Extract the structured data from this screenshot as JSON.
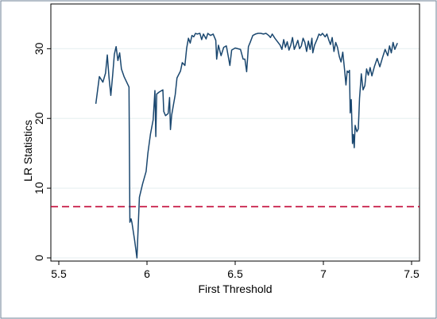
{
  "chart_data": {
    "type": "line",
    "title": "",
    "xlabel": "First Threshold",
    "ylabel": "LR Statistics",
    "xlim": [
      5.5,
      7.5
    ],
    "ylim": [
      0,
      33
    ],
    "x_ticks": [
      5.5,
      6,
      6.5,
      7,
      7.5
    ],
    "x_tick_labels": [
      "5.5",
      "6",
      "6.5",
      "7",
      "7.5"
    ],
    "y_ticks": [
      0,
      10,
      20,
      30
    ],
    "y_tick_labels": [
      "0",
      "10",
      "20",
      "30"
    ],
    "grid": "horizontal",
    "legend": "none",
    "colors": {
      "series": "#1a476f",
      "critical_line": "#c10534",
      "gridline": "#eaf2f3",
      "frame": "#000000",
      "outer_border": "#6c7f96"
    },
    "critical_value": 7.35,
    "series": [
      {
        "values": [
          [
            5.71,
            22.1
          ],
          [
            5.73,
            26.0
          ],
          [
            5.75,
            25.2
          ],
          [
            5.765,
            26.5
          ],
          [
            5.775,
            29.1
          ],
          [
            5.785,
            25.8
          ],
          [
            5.795,
            23.3
          ],
          [
            5.805,
            26.1
          ],
          [
            5.815,
            29.2
          ],
          [
            5.825,
            30.3
          ],
          [
            5.835,
            28.3
          ],
          [
            5.845,
            29.4
          ],
          [
            5.855,
            27.1
          ],
          [
            5.87,
            26.0
          ],
          [
            5.885,
            25.2
          ],
          [
            5.898,
            24.5
          ],
          [
            5.903,
            5.1
          ],
          [
            5.91,
            5.6
          ],
          [
            5.915,
            5.0
          ],
          [
            5.93,
            2.5
          ],
          [
            5.943,
            0.0
          ],
          [
            5.957,
            8.7
          ],
          [
            5.975,
            10.6
          ],
          [
            5.995,
            12.4
          ],
          [
            6.005,
            15.0
          ],
          [
            6.02,
            17.8
          ],
          [
            6.035,
            19.8
          ],
          [
            6.045,
            24.0
          ],
          [
            6.05,
            17.4
          ],
          [
            6.055,
            23.5
          ],
          [
            6.07,
            23.8
          ],
          [
            6.09,
            24.1
          ],
          [
            6.095,
            21.0
          ],
          [
            6.105,
            20.4
          ],
          [
            6.12,
            20.7
          ],
          [
            6.128,
            23.0
          ],
          [
            6.133,
            18.4
          ],
          [
            6.14,
            20.5
          ],
          [
            6.16,
            23.4
          ],
          [
            6.17,
            25.8
          ],
          [
            6.19,
            26.8
          ],
          [
            6.2,
            28.0
          ],
          [
            6.215,
            27.6
          ],
          [
            6.225,
            30.1
          ],
          [
            6.235,
            31.5
          ],
          [
            6.245,
            30.8
          ],
          [
            6.255,
            31.9
          ],
          [
            6.265,
            31.7
          ],
          [
            6.275,
            32.2
          ],
          [
            6.285,
            32.1
          ],
          [
            6.3,
            32.2
          ],
          [
            6.31,
            31.3
          ],
          [
            6.32,
            32.1
          ],
          [
            6.335,
            31.4
          ],
          [
            6.345,
            32.2
          ],
          [
            6.36,
            31.9
          ],
          [
            6.375,
            32.1
          ],
          [
            6.39,
            31.2
          ],
          [
            6.395,
            28.5
          ],
          [
            6.405,
            30.5
          ],
          [
            6.42,
            29.0
          ],
          [
            6.435,
            30.2
          ],
          [
            6.45,
            30.4
          ],
          [
            6.46,
            29.0
          ],
          [
            6.47,
            27.6
          ],
          [
            6.48,
            29.8
          ],
          [
            6.5,
            30.1
          ],
          [
            6.515,
            30.0
          ],
          [
            6.53,
            29.9
          ],
          [
            6.545,
            28.5
          ],
          [
            6.555,
            28.5
          ],
          [
            6.565,
            26.7
          ],
          [
            6.575,
            30.3
          ],
          [
            6.585,
            30.9
          ],
          [
            6.6,
            31.9
          ],
          [
            6.615,
            32.1
          ],
          [
            6.63,
            32.2
          ],
          [
            6.645,
            32.2
          ],
          [
            6.66,
            32.1
          ],
          [
            6.675,
            32.2
          ],
          [
            6.69,
            31.9
          ],
          [
            6.7,
            31.6
          ],
          [
            6.71,
            32.1
          ],
          [
            6.725,
            31.5
          ],
          [
            6.74,
            31.0
          ],
          [
            6.755,
            30.5
          ],
          [
            6.765,
            29.9
          ],
          [
            6.775,
            31.3
          ],
          [
            6.785,
            30.2
          ],
          [
            6.795,
            31.0
          ],
          [
            6.805,
            29.8
          ],
          [
            6.815,
            30.5
          ],
          [
            6.825,
            31.6
          ],
          [
            6.835,
            29.9
          ],
          [
            6.845,
            30.5
          ],
          [
            6.855,
            31.2
          ],
          [
            6.865,
            30.0
          ],
          [
            6.875,
            30.4
          ],
          [
            6.885,
            31.5
          ],
          [
            6.895,
            30.9
          ],
          [
            6.905,
            29.6
          ],
          [
            6.915,
            31.1
          ],
          [
            6.925,
            29.9
          ],
          [
            6.935,
            31.5
          ],
          [
            6.94,
            29.4
          ],
          [
            6.95,
            30.5
          ],
          [
            6.965,
            31.4
          ],
          [
            6.975,
            32.1
          ],
          [
            6.985,
            31.9
          ],
          [
            6.995,
            32.2
          ],
          [
            7.01,
            31.7
          ],
          [
            7.02,
            32.1
          ],
          [
            7.03,
            31.3
          ],
          [
            7.04,
            30.6
          ],
          [
            7.05,
            31.6
          ],
          [
            7.06,
            29.6
          ],
          [
            7.07,
            30.9
          ],
          [
            7.08,
            30.2
          ],
          [
            7.09,
            28.9
          ],
          [
            7.1,
            28.1
          ],
          [
            7.11,
            29.5
          ],
          [
            7.12,
            27.0
          ],
          [
            7.128,
            24.8
          ],
          [
            7.135,
            26.8
          ],
          [
            7.142,
            26.6
          ],
          [
            7.148,
            26.9
          ],
          [
            7.152,
            20.8
          ],
          [
            7.158,
            22.7
          ],
          [
            7.165,
            16.4
          ],
          [
            7.17,
            17.7
          ],
          [
            7.175,
            15.8
          ],
          [
            7.18,
            19.0
          ],
          [
            7.19,
            18.1
          ],
          [
            7.198,
            18.5
          ],
          [
            7.205,
            22.9
          ],
          [
            7.215,
            26.4
          ],
          [
            7.225,
            24.1
          ],
          [
            7.235,
            24.7
          ],
          [
            7.245,
            27.1
          ],
          [
            7.255,
            26.2
          ],
          [
            7.265,
            27.3
          ],
          [
            7.275,
            26.1
          ],
          [
            7.29,
            27.5
          ],
          [
            7.305,
            28.6
          ],
          [
            7.32,
            27.4
          ],
          [
            7.335,
            28.7
          ],
          [
            7.35,
            29.9
          ],
          [
            7.365,
            29.0
          ],
          [
            7.375,
            30.4
          ],
          [
            7.385,
            29.4
          ],
          [
            7.395,
            30.9
          ],
          [
            7.405,
            29.9
          ],
          [
            7.413,
            30.4
          ],
          [
            7.42,
            30.8
          ]
        ]
      }
    ]
  }
}
